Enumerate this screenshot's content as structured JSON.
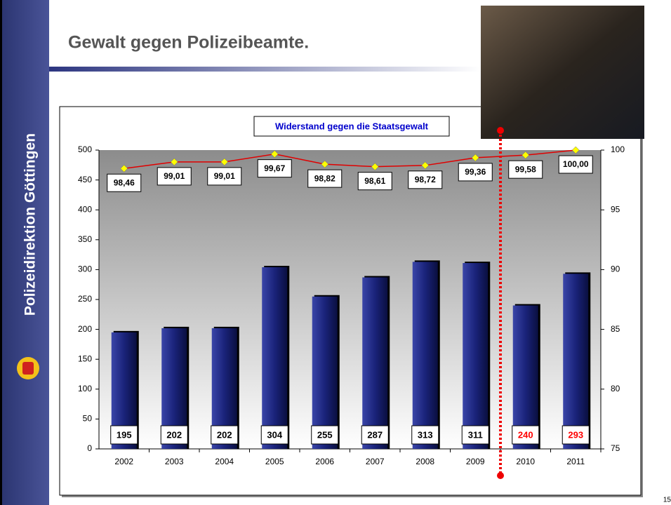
{
  "slide": {
    "title": "Gewalt gegen Polizeibeamte.",
    "sidebar": "Polizeidirektion Göttingen",
    "page_number": "15"
  },
  "chart_data": {
    "type": "bar",
    "title": "Widerstand gegen die Staatsgewalt",
    "categories": [
      "2002",
      "2003",
      "2004",
      "2005",
      "2006",
      "2007",
      "2008",
      "2009",
      "2010",
      "2011"
    ],
    "series": [
      {
        "type": "bar",
        "color": "#1f2a80",
        "values": [
          195,
          202,
          202,
          304,
          255,
          287,
          313,
          311,
          240,
          293
        ],
        "label_colors": [
          "#000000",
          "#000000",
          "#000000",
          "#000000",
          "#000000",
          "#000000",
          "#000000",
          "#000000",
          "#ff0000",
          "#ff0000"
        ]
      },
      {
        "type": "line",
        "axis": "y2",
        "color": "#e00000",
        "marker_color": "#ffff00",
        "values": [
          98.46,
          99.01,
          99.01,
          99.67,
          98.82,
          98.61,
          98.72,
          99.36,
          99.58,
          100.0
        ],
        "value_labels": [
          "98,46",
          "99,01",
          "99,01",
          "99,67",
          "98,82",
          "98,61",
          "98,72",
          "99,36",
          "99,58",
          "100,00"
        ]
      }
    ],
    "ylim": [
      0,
      500
    ],
    "yticks": [
      0,
      50,
      100,
      150,
      200,
      250,
      300,
      350,
      400,
      450,
      500
    ],
    "y2lim": [
      75,
      100
    ],
    "y2ticks": [
      75,
      80,
      85,
      90,
      95,
      100
    ]
  }
}
